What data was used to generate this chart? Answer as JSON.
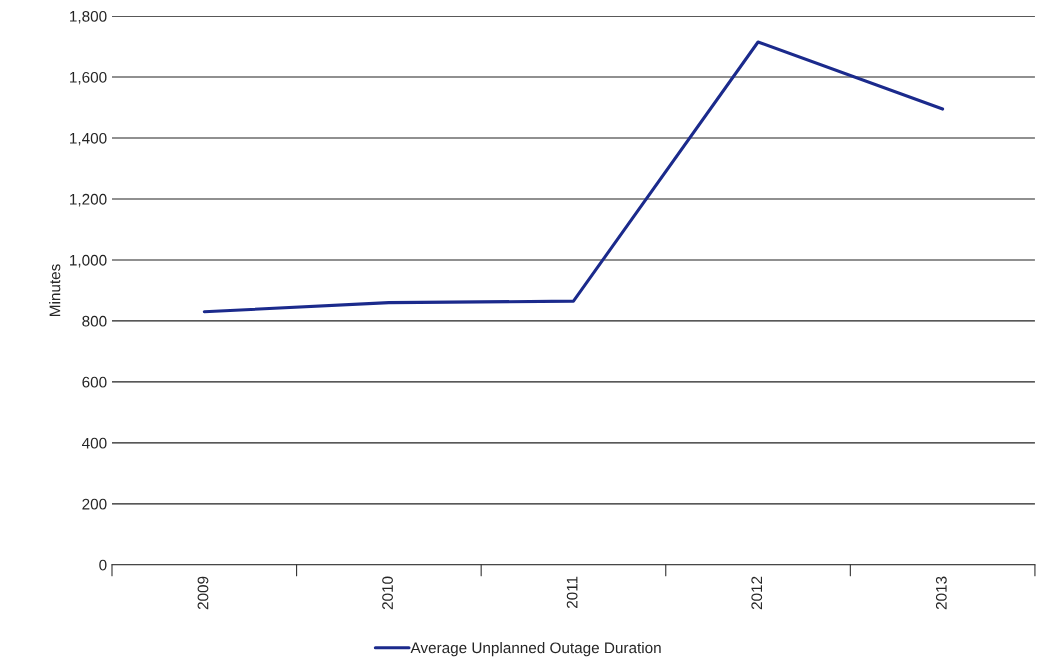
{
  "chart_data": {
    "type": "line",
    "ylabel": "Minutes",
    "categories": [
      "2009",
      "2010",
      "2011",
      "2012",
      "2013"
    ],
    "series": [
      {
        "name": "Average Unplanned Outage Duration",
        "color": "#1b2a8c",
        "values": [
          830,
          860,
          865,
          1715,
          1495
        ]
      }
    ],
    "ylim": [
      0,
      1800
    ],
    "yticks": [
      {
        "value": 0,
        "label": "0"
      },
      {
        "value": 200,
        "label": "200"
      },
      {
        "value": 400,
        "label": "400"
      },
      {
        "value": 600,
        "label": "600"
      },
      {
        "value": 800,
        "label": "800"
      },
      {
        "value": 1000,
        "label": "1,000"
      },
      {
        "value": 1200,
        "label": "1,200"
      },
      {
        "value": 1400,
        "label": "1,400"
      },
      {
        "value": 1600,
        "label": "1,600"
      },
      {
        "value": 1800,
        "label": "1,800"
      }
    ],
    "grid": "y",
    "legend": "bottom",
    "marker": "none",
    "line_style": "solid"
  }
}
